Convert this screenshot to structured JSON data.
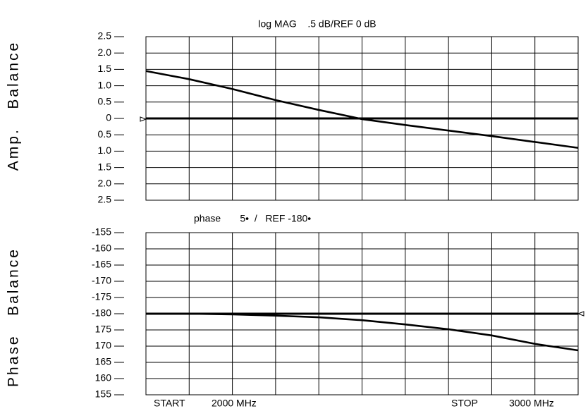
{
  "chart_data": [
    {
      "type": "line",
      "title": "log MAG    .5 dB/REF 0 dB",
      "ylabel": "Amp.   Balance",
      "x": [
        2000,
        2100,
        2200,
        2300,
        2400,
        2500,
        2600,
        2700,
        2800,
        2900,
        3000
      ],
      "series": [
        {
          "name": "Amp. Balance",
          "color": "#000000",
          "values": [
            1.45,
            1.2,
            0.9,
            0.56,
            0.26,
            -0.02,
            -0.2,
            -0.37,
            -0.54,
            -0.72,
            -0.9
          ]
        }
      ],
      "reference": 0,
      "xlim": [
        2000,
        3000
      ],
      "xticks": [
        2000,
        2100,
        2200,
        2300,
        2400,
        2500,
        2600,
        2700,
        2800,
        2900,
        3000
      ],
      "ylim": [
        -2.5,
        2.5
      ],
      "yticks": [
        2.5,
        {
          "value": 2,
          "label": "2.0"
        },
        1.5,
        {
          "value": 1,
          "label": "1.0"
        },
        0.5,
        0,
        {
          "value": -0.5,
          "label": "0.5"
        },
        {
          "value": -1,
          "label": "1.0"
        },
        {
          "value": -1.5,
          "label": "1.5"
        },
        {
          "value": -2,
          "label": "2.0"
        },
        {
          "value": -2.5,
          "label": "2.5"
        }
      ],
      "grid": true
    },
    {
      "type": "line",
      "title": "phase       5•  /   REF -180•",
      "ylabel": "Phase   Balance",
      "x": [
        2000,
        2100,
        2200,
        2300,
        2400,
        2500,
        2600,
        2700,
        2800,
        2900,
        3000
      ],
      "series": [
        {
          "name": "Phase Balance",
          "color": "#000000",
          "values": [
            -180,
            -180,
            -180.2,
            -180.6,
            -181.1,
            -182,
            -183.3,
            -184.8,
            -186.7,
            -189.3,
            -191.3
          ]
        }
      ],
      "reference": -180,
      "xlim": [
        2000,
        3000
      ],
      "xticks": [
        2000,
        2100,
        2200,
        2300,
        2400,
        2500,
        2600,
        2700,
        2800,
        2900,
        3000
      ],
      "ylim": [
        -205,
        -155
      ],
      "yticks": [
        -155,
        -160,
        -165,
        -170,
        -175,
        -180,
        {
          "value": -185,
          "label": "175"
        },
        {
          "value": -190,
          "label": "170"
        },
        {
          "value": -195,
          "label": "165"
        },
        {
          "value": -200,
          "label": "160"
        },
        {
          "value": -205,
          "label": "155"
        }
      ],
      "grid": true,
      "annotations": [
        "START",
        "2000 MHz",
        "STOP",
        "3000 MHz"
      ]
    }
  ]
}
